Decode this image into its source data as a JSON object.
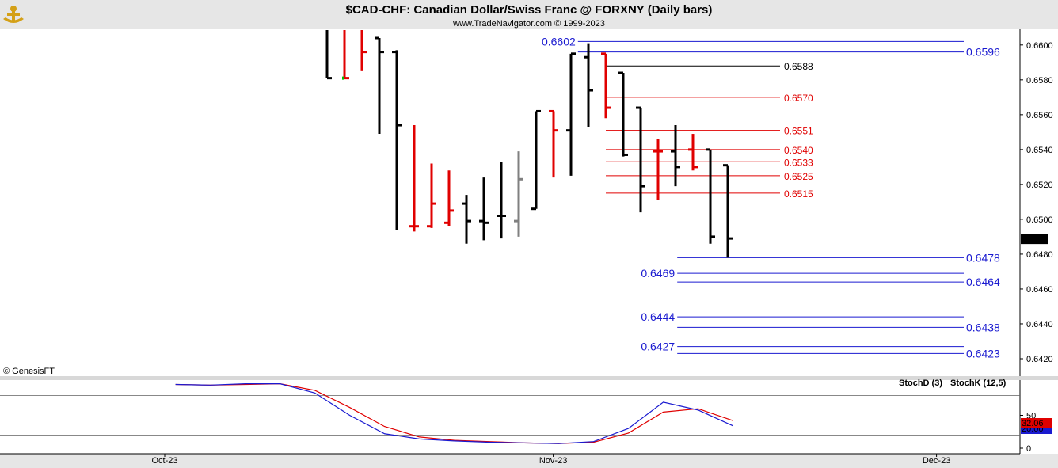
{
  "chart_data": {
    "type": "bar",
    "title": "$CAD-CHF:  Canadian Dollar/Swiss Franc @ FORXNY  (Daily bars)",
    "subtitle": "www.TradeNavigator.com © 1999-2023",
    "copyright": "© GenesisFT",
    "last_price": "0.6489",
    "colors": {
      "up": "#000000",
      "down": "#e00000",
      "neutral": "#808080",
      "level_blue": "#1a1ad0",
      "level_red": "#e00000",
      "level_black": "#000000",
      "stoch_d": "#e00000",
      "stoch_k": "#1a1ad0"
    },
    "price_axis": {
      "ylim": [
        0.641,
        0.6609
      ],
      "ticks": [
        "0.6600",
        "0.6580",
        "0.6560",
        "0.6540",
        "0.6520",
        "0.6500",
        "0.6480",
        "0.6460",
        "0.6440",
        "0.6420"
      ]
    },
    "x_axis": {
      "labels": [
        {
          "label": "Oct-23",
          "bar": 0
        },
        {
          "label": "Nov-23",
          "bar": 22.3
        },
        {
          "label": "Dec-23",
          "bar": 44.3
        }
      ]
    },
    "bars": [
      {
        "o": 0.664,
        "h": 0.668,
        "l": 0.6581,
        "c": 0.6581,
        "col": "up"
      },
      {
        "o": 0.662,
        "h": 0.6632,
        "l": 0.6581,
        "c": 0.6581,
        "col": "down"
      },
      {
        "o": 0.662,
        "h": 0.6632,
        "l": 0.6585,
        "c": 0.6596,
        "col": "down"
      },
      {
        "o": 0.6604,
        "h": 0.6604,
        "l": 0.6549,
        "c": 0.6596,
        "col": "up"
      },
      {
        "o": 0.6596,
        "h": 0.6597,
        "l": 0.6494,
        "c": 0.6554,
        "col": "up"
      },
      {
        "o": 0.6496,
        "h": 0.6554,
        "l": 0.6493,
        "c": 0.6496,
        "col": "down"
      },
      {
        "o": 0.6496,
        "h": 0.6532,
        "l": 0.6495,
        "c": 0.6509,
        "col": "down"
      },
      {
        "o": 0.6498,
        "h": 0.6528,
        "l": 0.6496,
        "c": 0.6505,
        "col": "down"
      },
      {
        "o": 0.6509,
        "h": 0.6514,
        "l": 0.6486,
        "c": 0.6499,
        "col": "up"
      },
      {
        "o": 0.6499,
        "h": 0.6524,
        "l": 0.6488,
        "c": 0.6498,
        "col": "up"
      },
      {
        "o": 0.6502,
        "h": 0.6533,
        "l": 0.6489,
        "c": 0.6502,
        "col": "up"
      },
      {
        "o": 0.6499,
        "h": 0.6539,
        "l": 0.649,
        "c": 0.6523,
        "col": "neutral"
      },
      {
        "o": 0.6506,
        "h": 0.6562,
        "l": 0.6506,
        "c": 0.6562,
        "col": "up"
      },
      {
        "o": 0.6562,
        "h": 0.6562,
        "l": 0.6524,
        "c": 0.6551,
        "col": "down"
      },
      {
        "o": 0.6551,
        "h": 0.6595,
        "l": 0.6525,
        "c": 0.6595,
        "col": "up"
      },
      {
        "o": 0.6593,
        "h": 0.6601,
        "l": 0.6553,
        "c": 0.6574,
        "col": "up"
      },
      {
        "o": 0.6595,
        "h": 0.6595,
        "l": 0.6558,
        "c": 0.6564,
        "col": "down"
      },
      {
        "o": 0.6584,
        "h": 0.6584,
        "l": 0.6536,
        "c": 0.6537,
        "col": "up"
      },
      {
        "o": 0.6564,
        "h": 0.6564,
        "l": 0.6504,
        "c": 0.6519,
        "col": "up"
      },
      {
        "o": 0.6539,
        "h": 0.6546,
        "l": 0.6511,
        "c": 0.6539,
        "col": "down"
      },
      {
        "o": 0.6539,
        "h": 0.6554,
        "l": 0.6519,
        "c": 0.653,
        "col": "up"
      },
      {
        "o": 0.654,
        "h": 0.6549,
        "l": 0.6528,
        "c": 0.653,
        "col": "down"
      },
      {
        "o": 0.654,
        "h": 0.654,
        "l": 0.6486,
        "c": 0.649,
        "col": "up"
      },
      {
        "o": 0.6531,
        "h": 0.6531,
        "l": 0.6478,
        "c": 0.6489,
        "col": "up"
      }
    ],
    "levels": [
      {
        "label": "0.6602",
        "value": 0.6602,
        "color": "blue",
        "from_bar": 14.4,
        "label_side": "left",
        "size": "big"
      },
      {
        "label": "0.6596",
        "value": 0.6596,
        "color": "blue",
        "from_bar": 14.4,
        "label_side": "right",
        "size": "big"
      },
      {
        "label": "0.6588",
        "value": 0.6588,
        "color": "black",
        "from_bar": 16,
        "label_side": "mid",
        "size": "small"
      },
      {
        "label": "0.6570",
        "value": 0.657,
        "color": "red",
        "from_bar": 16,
        "label_side": "mid",
        "size": "small"
      },
      {
        "label": "0.6551",
        "value": 0.6551,
        "color": "red",
        "from_bar": 16,
        "label_side": "mid",
        "size": "small"
      },
      {
        "label": "0.6540",
        "value": 0.654,
        "color": "red",
        "from_bar": 16,
        "label_side": "mid",
        "size": "small"
      },
      {
        "label": "0.6533",
        "value": 0.6533,
        "color": "red",
        "from_bar": 16,
        "label_side": "mid",
        "size": "small"
      },
      {
        "label": "0.6525",
        "value": 0.6525,
        "color": "red",
        "from_bar": 16,
        "label_side": "mid",
        "size": "small"
      },
      {
        "label": "0.6515",
        "value": 0.6515,
        "color": "red",
        "from_bar": 16,
        "label_side": "mid",
        "size": "small"
      },
      {
        "label": "0.6478",
        "value": 0.6478,
        "color": "blue",
        "from_bar": 20.1,
        "label_side": "right",
        "size": "big"
      },
      {
        "label": "0.6469",
        "value": 0.6469,
        "color": "blue",
        "from_bar": 20.1,
        "label_side": "left",
        "size": "big"
      },
      {
        "label": "0.6464",
        "value": 0.6464,
        "color": "blue",
        "from_bar": 20.1,
        "label_side": "right",
        "size": "big"
      },
      {
        "label": "0.6444",
        "value": 0.6444,
        "color": "blue",
        "from_bar": 20.1,
        "label_side": "left",
        "size": "big"
      },
      {
        "label": "0.6438",
        "value": 0.6438,
        "color": "blue",
        "from_bar": 20.1,
        "label_side": "right",
        "size": "big"
      },
      {
        "label": "0.6427",
        "value": 0.6427,
        "color": "blue",
        "from_bar": 20.1,
        "label_side": "left",
        "size": "big"
      },
      {
        "label": "0.6423",
        "value": 0.6423,
        "color": "blue",
        "from_bar": 20.1,
        "label_side": "right",
        "size": "big"
      }
    ],
    "stochastic": {
      "legend_d": "StochD (3)",
      "legend_k": "StochK (12,5)",
      "ylim": [
        0,
        100
      ],
      "ticks": [
        "50",
        "0"
      ],
      "reference_levels": [
        80,
        20
      ],
      "value_label": "32.06",
      "value_label_behind": "20.00",
      "x": [
        -8.7,
        -6.7,
        -4.7,
        -2.7,
        -0.7,
        1.3,
        3.3,
        5.3,
        7.3,
        9.3,
        11.3,
        13.3,
        15.3,
        17.3,
        19.3,
        21.3,
        23.3
      ],
      "d": [
        97,
        96,
        97,
        98,
        88,
        62,
        33,
        17,
        12,
        10,
        8,
        7,
        9,
        23,
        55,
        60,
        42
      ],
      "k": [
        97,
        96,
        98,
        98,
        84,
        50,
        22,
        14,
        11,
        9,
        8,
        7,
        10,
        30,
        70,
        58,
        34
      ]
    }
  }
}
